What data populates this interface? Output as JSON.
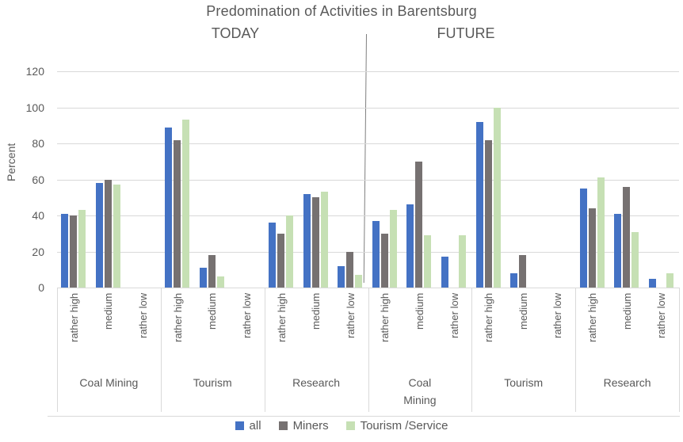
{
  "chart_data": {
    "type": "bar",
    "title": "Predomination of Activities in Barentsburg",
    "sections": [
      "TODAY",
      "FUTURE"
    ],
    "ylabel": "Percent",
    "ylim": [
      0,
      120
    ],
    "yticks": [
      120,
      100,
      80,
      60,
      40,
      20,
      0
    ],
    "grid": true,
    "legend_position": "bottom",
    "subcategories": [
      "rather high",
      "medium",
      "rather low"
    ],
    "series": [
      {
        "name": "all",
        "color": "#4472C4"
      },
      {
        "name": "Miners",
        "color": "#767171"
      },
      {
        "name": "Tourism /Service",
        "color": "#C6E0B4"
      }
    ],
    "groups": [
      {
        "section": "TODAY",
        "label": "Coal Mining",
        "label_lines": [
          "Coal Mining"
        ],
        "bars": {
          "rather high": [
            41,
            40,
            43
          ],
          "medium": [
            58,
            60,
            57
          ],
          "rather low": [
            0,
            0,
            0
          ]
        }
      },
      {
        "section": "TODAY",
        "label": "Tourism",
        "label_lines": [
          "Tourism"
        ],
        "bars": {
          "rather high": [
            89,
            82,
            93
          ],
          "medium": [
            11,
            18,
            6
          ],
          "rather low": [
            0,
            0,
            0
          ]
        }
      },
      {
        "section": "TODAY",
        "label": "Research",
        "label_lines": [
          "Research"
        ],
        "bars": {
          "rather high": [
            36,
            30,
            40
          ],
          "medium": [
            52,
            50,
            53
          ],
          "rather low": [
            12,
            20,
            7
          ]
        }
      },
      {
        "section": "FUTURE",
        "label": "Coal Mining",
        "label_lines": [
          "Coal",
          "Mining"
        ],
        "bars": {
          "rather high": [
            37,
            30,
            43
          ],
          "medium": [
            46,
            70,
            29
          ],
          "rather low": [
            17,
            0,
            29
          ]
        }
      },
      {
        "section": "FUTURE",
        "label": "Tourism",
        "label_lines": [
          "Tourism"
        ],
        "bars": {
          "rather high": [
            92,
            82,
            100
          ],
          "medium": [
            8,
            18,
            0
          ],
          "rather low": [
            0,
            0,
            0
          ]
        }
      },
      {
        "section": "FUTURE",
        "label": "Research",
        "label_lines": [
          "Research"
        ],
        "bars": {
          "rather high": [
            55,
            44,
            61
          ],
          "medium": [
            41,
            56,
            31
          ],
          "rather low": [
            5,
            0,
            8
          ]
        }
      }
    ]
  },
  "colors": {
    "text": "#595959",
    "gridline": "#D9D9D9",
    "axis_line": "#D9D9D9",
    "divider": "#7F7F7F",
    "background": "#FFFFFF"
  }
}
